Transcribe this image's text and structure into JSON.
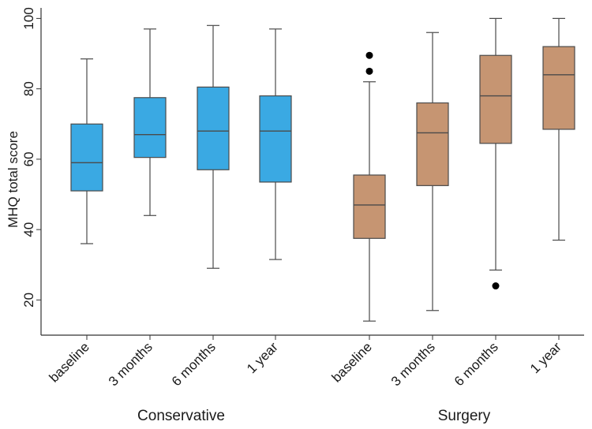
{
  "chart_data": {
    "type": "box",
    "title": "",
    "ylabel": "MHQ total score",
    "ylim": [
      10,
      103
    ],
    "yticks": [
      20,
      40,
      60,
      80,
      100
    ],
    "grid": false,
    "groups": [
      {
        "name": "Conservative",
        "color": "#3aa9e3",
        "boxes": [
          {
            "category": "baseline",
            "whisker_low": 36,
            "q1": 51,
            "median": 59,
            "q3": 70,
            "whisker_high": 88.5,
            "outliers": []
          },
          {
            "category": "3 months",
            "whisker_low": 44,
            "q1": 60.5,
            "median": 67,
            "q3": 77.5,
            "whisker_high": 97,
            "outliers": []
          },
          {
            "category": "6 months",
            "whisker_low": 29,
            "q1": 57,
            "median": 68,
            "q3": 80.5,
            "whisker_high": 98,
            "outliers": []
          },
          {
            "category": "1 year",
            "whisker_low": 31.5,
            "q1": 53.5,
            "median": 68,
            "q3": 78,
            "whisker_high": 97,
            "outliers": []
          }
        ]
      },
      {
        "name": "Surgery",
        "color": "#c69572",
        "boxes": [
          {
            "category": "baseline",
            "whisker_low": 14,
            "q1": 37.5,
            "median": 47,
            "q3": 55.5,
            "whisker_high": 82,
            "outliers": [
              85,
              89.5
            ]
          },
          {
            "category": "3 months",
            "whisker_low": 17,
            "q1": 52.5,
            "median": 67.5,
            "q3": 76,
            "whisker_high": 96,
            "outliers": []
          },
          {
            "category": "6 months",
            "whisker_low": 28.5,
            "q1": 64.5,
            "median": 78,
            "q3": 89.5,
            "whisker_high": 100,
            "outliers": [
              24
            ]
          },
          {
            "category": "1 year",
            "whisker_low": 37,
            "q1": 68.5,
            "median": 84,
            "q3": 92,
            "whisker_high": 100,
            "outliers": []
          }
        ]
      }
    ]
  }
}
